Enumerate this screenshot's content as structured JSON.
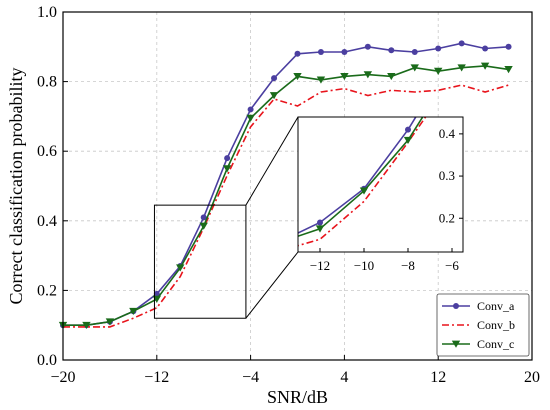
{
  "chart_data": {
    "type": "line",
    "xlabel": "SNR/dB",
    "ylabel": "Correct classification probability",
    "xlim": [
      -20,
      20
    ],
    "ylim": [
      0,
      1.0
    ],
    "xticks": [
      "−20",
      "−12",
      "−4",
      "4",
      "12",
      "20"
    ],
    "yticks": [
      "0.0",
      "0.2",
      "0.4",
      "0.6",
      "0.8",
      "1.0"
    ],
    "legend_position": "bottom-right",
    "x": [
      -20,
      -18,
      -16,
      -14,
      -12,
      -10,
      -8,
      -6,
      -4,
      -2,
      0,
      2,
      4,
      6,
      8,
      10,
      12,
      14,
      16,
      18
    ],
    "series": [
      {
        "name": "Conv_a",
        "color": "#4b3fa0",
        "line_style": "solid",
        "marker": "circle",
        "values": [
          0.1,
          0.1,
          0.11,
          0.14,
          0.19,
          0.27,
          0.41,
          0.58,
          0.72,
          0.81,
          0.88,
          0.885,
          0.885,
          0.9,
          0.89,
          0.885,
          0.895,
          0.91,
          0.895,
          0.9
        ]
      },
      {
        "name": "Conv_b",
        "color": "#e8141c",
        "line_style": "dashdot",
        "marker": "none",
        "values": [
          0.095,
          0.095,
          0.095,
          0.12,
          0.15,
          0.24,
          0.38,
          0.53,
          0.67,
          0.75,
          0.73,
          0.77,
          0.78,
          0.76,
          0.775,
          0.77,
          0.775,
          0.79,
          0.77,
          0.79
        ]
      },
      {
        "name": "Conv_c",
        "color": "#1a6b1a",
        "line_style": "solid",
        "marker": "triangle-down",
        "values": [
          0.1,
          0.1,
          0.11,
          0.14,
          0.175,
          0.265,
          0.385,
          0.55,
          0.695,
          0.76,
          0.815,
          0.805,
          0.815,
          0.82,
          0.815,
          0.84,
          0.83,
          0.84,
          0.845,
          0.835
        ]
      }
    ],
    "inset": {
      "xlim": [
        -13,
        -5.5
      ],
      "ylim": [
        0.12,
        0.44
      ],
      "xticks": [
        "−12",
        "−10",
        "−8",
        "−6"
      ],
      "yticks": [
        "0.2",
        "0.3",
        "0.4"
      ],
      "zoom_region": {
        "x": [
          -12.2,
          -4.4
        ],
        "y": [
          0.12,
          0.445
        ]
      }
    }
  }
}
